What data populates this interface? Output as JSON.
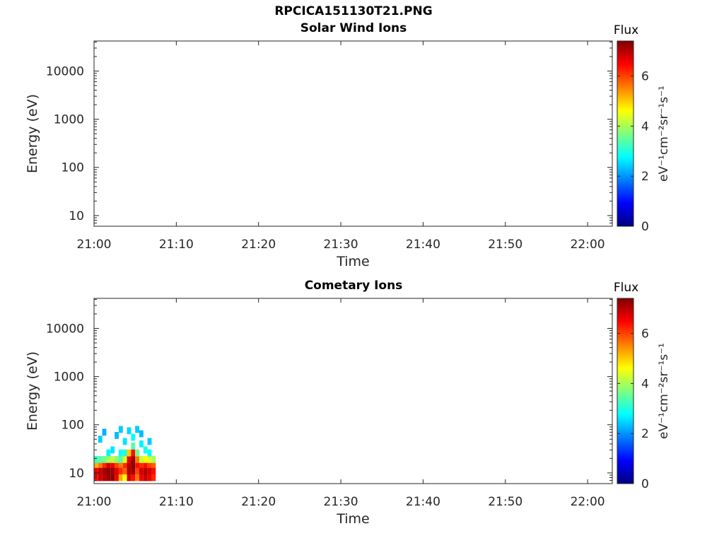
{
  "figure": {
    "filename_title": "RPCICA151130T21.PNG"
  },
  "colormap": {
    "name": "jet",
    "stops": [
      "#00007f",
      "#0000ff",
      "#007fff",
      "#00ffff",
      "#7fff7f",
      "#ffff00",
      "#ff7f00",
      "#ff0000",
      "#7f0000"
    ]
  },
  "chart_data": [
    {
      "type": "heatmap",
      "title": "Solar Wind Ions",
      "xlabel": "Time",
      "ylabel": "Energy (eV)",
      "x_ticks": [
        "21:00",
        "21:10",
        "21:20",
        "21:30",
        "21:40",
        "21:50",
        "22:00"
      ],
      "x_range_minutes": [
        0,
        63
      ],
      "y_scale": "log",
      "y_ticks": [
        "10",
        "100",
        "1000",
        "10000"
      ],
      "y_range": [
        6,
        42000
      ],
      "colorbar": {
        "title": "Flux",
        "label": "eV⁻¹cm⁻²sr⁻¹s⁻¹",
        "ticks": [
          "0",
          "2",
          "4",
          "6"
        ],
        "range": [
          0,
          7.4
        ]
      },
      "cells": []
    },
    {
      "type": "heatmap",
      "title": "Cometary Ions",
      "xlabel": "Time",
      "ylabel": "Energy (eV)",
      "x_ticks": [
        "21:00",
        "21:10",
        "21:20",
        "21:30",
        "21:40",
        "21:50",
        "22:00"
      ],
      "x_range_minutes": [
        0,
        63
      ],
      "y_scale": "log",
      "y_ticks": [
        "10",
        "100",
        "1000",
        "10000"
      ],
      "y_range": [
        6,
        42000
      ],
      "colorbar": {
        "title": "Flux",
        "label": "eV⁻¹cm⁻²sr⁻¹s⁻¹",
        "ticks": [
          "0",
          "2",
          "4",
          "6"
        ],
        "range": [
          0,
          7.4
        ]
      },
      "data_extent_minutes": [
        0,
        8
      ],
      "cells": [
        {
          "t": 0.5,
          "e": 8,
          "v": 6.4
        },
        {
          "t": 0.5,
          "e": 11,
          "v": 6.6
        },
        {
          "t": 0.5,
          "e": 15,
          "v": 5.2
        },
        {
          "t": 0.5,
          "e": 19,
          "v": 3.2
        },
        {
          "t": 1.0,
          "e": 8,
          "v": 6.8
        },
        {
          "t": 1.0,
          "e": 11,
          "v": 6.9
        },
        {
          "t": 1.0,
          "e": 15,
          "v": 5.6
        },
        {
          "t": 1.0,
          "e": 19,
          "v": 3.4
        },
        {
          "t": 1.5,
          "e": 8,
          "v": 7.0
        },
        {
          "t": 1.5,
          "e": 11,
          "v": 7.1
        },
        {
          "t": 1.5,
          "e": 15,
          "v": 6.2
        },
        {
          "t": 1.5,
          "e": 19,
          "v": 3.6
        },
        {
          "t": 2.0,
          "e": 8,
          "v": 7.2
        },
        {
          "t": 2.0,
          "e": 11,
          "v": 7.3
        },
        {
          "t": 2.0,
          "e": 15,
          "v": 6.8
        },
        {
          "t": 2.0,
          "e": 19,
          "v": 4.0
        },
        {
          "t": 2.5,
          "e": 8,
          "v": 7.3
        },
        {
          "t": 2.5,
          "e": 11,
          "v": 7.2
        },
        {
          "t": 2.5,
          "e": 15,
          "v": 6.6
        },
        {
          "t": 2.5,
          "e": 19,
          "v": 4.2
        },
        {
          "t": 3.0,
          "e": 8,
          "v": 6.6
        },
        {
          "t": 3.0,
          "e": 11,
          "v": 6.7
        },
        {
          "t": 3.0,
          "e": 15,
          "v": 6.0
        },
        {
          "t": 3.0,
          "e": 19,
          "v": 3.8
        },
        {
          "t": 3.5,
          "e": 8,
          "v": 5.2
        },
        {
          "t": 3.5,
          "e": 11,
          "v": 6.2
        },
        {
          "t": 3.5,
          "e": 15,
          "v": 5.6
        },
        {
          "t": 3.5,
          "e": 19,
          "v": 3.4
        },
        {
          "t": 4.0,
          "e": 8,
          "v": 4.6
        },
        {
          "t": 4.0,
          "e": 11,
          "v": 5.8
        },
        {
          "t": 4.0,
          "e": 15,
          "v": 6.2
        },
        {
          "t": 4.0,
          "e": 19,
          "v": 4.4
        },
        {
          "t": 4.0,
          "e": 26,
          "v": 3.0
        },
        {
          "t": 4.5,
          "e": 8,
          "v": 6.8
        },
        {
          "t": 4.5,
          "e": 11,
          "v": 7.0
        },
        {
          "t": 4.5,
          "e": 15,
          "v": 7.0
        },
        {
          "t": 4.5,
          "e": 19,
          "v": 6.6
        },
        {
          "t": 4.5,
          "e": 26,
          "v": 5.0
        },
        {
          "t": 5.0,
          "e": 8,
          "v": 6.4
        },
        {
          "t": 5.0,
          "e": 11,
          "v": 7.2
        },
        {
          "t": 5.0,
          "e": 15,
          "v": 7.3
        },
        {
          "t": 5.0,
          "e": 19,
          "v": 7.2
        },
        {
          "t": 5.0,
          "e": 26,
          "v": 6.4
        },
        {
          "t": 5.0,
          "e": 36,
          "v": 3.4
        },
        {
          "t": 5.5,
          "e": 8,
          "v": 5.6
        },
        {
          "t": 5.5,
          "e": 11,
          "v": 6.0
        },
        {
          "t": 5.5,
          "e": 15,
          "v": 6.4
        },
        {
          "t": 5.5,
          "e": 19,
          "v": 5.6
        },
        {
          "t": 5.5,
          "e": 26,
          "v": 3.6
        },
        {
          "t": 6.0,
          "e": 8,
          "v": 6.6
        },
        {
          "t": 6.0,
          "e": 11,
          "v": 6.8
        },
        {
          "t": 6.0,
          "e": 15,
          "v": 6.2
        },
        {
          "t": 6.0,
          "e": 19,
          "v": 4.2
        },
        {
          "t": 6.5,
          "e": 8,
          "v": 6.9
        },
        {
          "t": 6.5,
          "e": 11,
          "v": 7.0
        },
        {
          "t": 6.5,
          "e": 15,
          "v": 6.4
        },
        {
          "t": 6.5,
          "e": 19,
          "v": 4.6
        },
        {
          "t": 7.0,
          "e": 8,
          "v": 6.6
        },
        {
          "t": 7.0,
          "e": 11,
          "v": 6.8
        },
        {
          "t": 7.0,
          "e": 15,
          "v": 6.0
        },
        {
          "t": 7.0,
          "e": 19,
          "v": 4.4
        },
        {
          "t": 7.5,
          "e": 8,
          "v": 6.2
        },
        {
          "t": 7.5,
          "e": 11,
          "v": 6.4
        },
        {
          "t": 7.5,
          "e": 15,
          "v": 5.8
        },
        {
          "t": 7.5,
          "e": 19,
          "v": 4.0
        },
        {
          "t": 1.0,
          "e": 50,
          "v": 2.4
        },
        {
          "t": 1.5,
          "e": 70,
          "v": 2.2
        },
        {
          "t": 2.5,
          "e": 30,
          "v": 2.6
        },
        {
          "t": 3.0,
          "e": 60,
          "v": 2.3
        },
        {
          "t": 3.5,
          "e": 80,
          "v": 2.4
        },
        {
          "t": 4.0,
          "e": 45,
          "v": 2.6
        },
        {
          "t": 4.5,
          "e": 75,
          "v": 2.5
        },
        {
          "t": 5.0,
          "e": 55,
          "v": 2.8
        },
        {
          "t": 5.5,
          "e": 80,
          "v": 2.4
        },
        {
          "t": 6.0,
          "e": 40,
          "v": 2.7
        },
        {
          "t": 6.0,
          "e": 65,
          "v": 2.3
        },
        {
          "t": 6.5,
          "e": 30,
          "v": 2.9
        },
        {
          "t": 7.0,
          "e": 45,
          "v": 2.4
        },
        {
          "t": 2.0,
          "e": 26,
          "v": 2.7
        },
        {
          "t": 3.5,
          "e": 26,
          "v": 2.9
        },
        {
          "t": 7.0,
          "e": 26,
          "v": 2.8
        }
      ]
    }
  ]
}
